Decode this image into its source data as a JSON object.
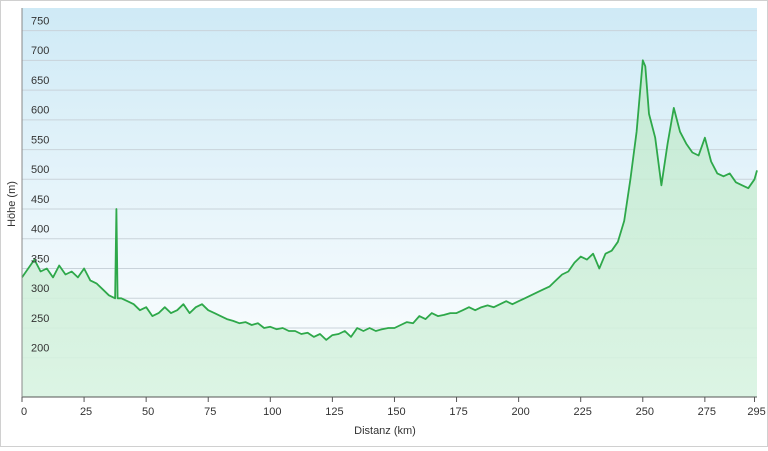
{
  "chart_data": {
    "type": "area",
    "y_label": "Höhe (m)",
    "x_label": "Distanz  (km)",
    "color": "#2ea84a",
    "area_color": "#d8f3e1",
    "grid": true,
    "xlim": [
      0,
      296
    ],
    "ylim": [
      134,
      788
    ],
    "xticks": [
      0,
      25,
      50,
      75,
      100,
      125,
      150,
      175,
      200,
      225,
      250,
      275,
      295
    ],
    "yticks": [
      200,
      250,
      300,
      350,
      400,
      450,
      500,
      550,
      600,
      650,
      700,
      750
    ],
    "x": [
      0,
      2.5,
      5,
      7.5,
      10,
      12.5,
      15,
      17.5,
      20,
      22.5,
      25,
      27.5,
      30,
      32.5,
      35,
      37.5,
      38,
      38.5,
      40,
      42.5,
      45,
      47.5,
      50,
      52.5,
      55,
      57.5,
      60,
      62.5,
      65,
      67.5,
      70,
      72.5,
      75,
      77.5,
      80,
      82.5,
      85,
      87.5,
      90,
      92.5,
      95,
      97.5,
      100,
      102.5,
      105,
      107.5,
      110,
      112.5,
      115,
      117.5,
      120,
      122.5,
      125,
      127.5,
      130,
      132.5,
      135,
      137.5,
      140,
      142.5,
      145,
      147.5,
      150,
      152.5,
      155,
      157.5,
      160,
      162.5,
      165,
      167.5,
      170,
      172.5,
      175,
      177.5,
      180,
      182.5,
      185,
      187.5,
      190,
      192.5,
      195,
      197.5,
      200,
      202.5,
      205,
      207.5,
      210,
      212.5,
      215,
      217.5,
      220,
      222.5,
      225,
      227.5,
      230,
      232.5,
      235,
      237.5,
      240,
      242.5,
      245,
      247.5,
      250,
      251,
      252.5,
      255,
      257.5,
      260,
      262.5,
      265,
      267.5,
      270,
      272.5,
      275,
      277.5,
      280,
      282.5,
      285,
      287.5,
      290,
      292.5,
      295,
      296
    ],
    "values": [
      335,
      350,
      365,
      345,
      350,
      335,
      355,
      340,
      345,
      335,
      350,
      330,
      325,
      315,
      305,
      300,
      450,
      300,
      300,
      295,
      290,
      280,
      285,
      270,
      275,
      285,
      275,
      280,
      290,
      275,
      285,
      290,
      280,
      275,
      270,
      265,
      262,
      258,
      260,
      255,
      258,
      250,
      252,
      248,
      250,
      245,
      245,
      240,
      242,
      235,
      240,
      230,
      238,
      240,
      245,
      235,
      250,
      245,
      250,
      245,
      248,
      250,
      250,
      255,
      260,
      258,
      270,
      265,
      275,
      270,
      272,
      275,
      275,
      280,
      285,
      280,
      285,
      288,
      285,
      290,
      295,
      290,
      295,
      300,
      305,
      310,
      315,
      320,
      330,
      340,
      345,
      360,
      370,
      365,
      375,
      350,
      375,
      380,
      395,
      430,
      500,
      580,
      700,
      690,
      610,
      570,
      490,
      560,
      620,
      580,
      560,
      545,
      540,
      570,
      530,
      510,
      505,
      510,
      495,
      490,
      485,
      500,
      515
    ]
  }
}
